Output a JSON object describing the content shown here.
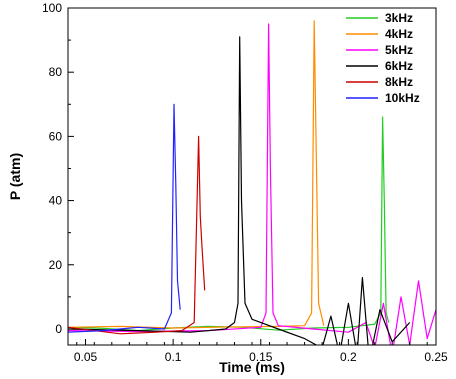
{
  "chart_data": {
    "type": "line",
    "title": "",
    "xlabel": "Time (ms)",
    "ylabel": "P (atm)",
    "xlim": [
      0.04,
      0.25
    ],
    "ylim": [
      -5,
      100
    ],
    "x_ticks": [
      0.05,
      0.1,
      0.15,
      0.2,
      0.25
    ],
    "x_tick_labels": [
      "0.05",
      "0.1",
      "0.15",
      "0.2",
      "0.25"
    ],
    "y_ticks": [
      0,
      20,
      40,
      60,
      80,
      100
    ],
    "y_tick_labels": [
      "0",
      "20",
      "40",
      "60",
      "80",
      "100"
    ],
    "grid": false,
    "legend_position": "top-right",
    "series": [
      {
        "name": "3kHz",
        "color": "#22cc22",
        "x": [
          0.04,
          0.06,
          0.08,
          0.1,
          0.12,
          0.14,
          0.16,
          0.18,
          0.2,
          0.215,
          0.2185,
          0.2195,
          0.2205,
          0.2215,
          0.223
        ],
        "y": [
          0.5,
          0.2,
          -0.5,
          0.3,
          0.8,
          0.5,
          -0.4,
          0.3,
          0.5,
          1.5,
          5,
          66,
          40,
          5,
          2
        ]
      },
      {
        "name": "4kHz",
        "color": "#ff8c00",
        "x": [
          0.04,
          0.07,
          0.1,
          0.13,
          0.16,
          0.175,
          0.179,
          0.1805,
          0.1815,
          0.183,
          0.186
        ],
        "y": [
          0.5,
          0.8,
          0.3,
          0.6,
          0.8,
          1,
          5,
          96,
          60,
          8,
          1
        ]
      },
      {
        "name": "5kHz",
        "color": "#ff00ff",
        "x": [
          0.04,
          0.08,
          0.12,
          0.15,
          0.153,
          0.1545,
          0.1555,
          0.157,
          0.16,
          0.18,
          0.2,
          0.21,
          0.215,
          0.22,
          0.225,
          0.23,
          0.235,
          0.24,
          0.245,
          0.25
        ],
        "y": [
          -0.5,
          -0.8,
          -0.5,
          0.5,
          5,
          95,
          50,
          5,
          1,
          0,
          -1,
          2,
          -6,
          8,
          -8,
          10,
          -5,
          15,
          -3,
          6
        ]
      },
      {
        "name": "6kHz",
        "color": "#000000",
        "x": [
          0.04,
          0.08,
          0.11,
          0.13,
          0.135,
          0.137,
          0.138,
          0.139,
          0.141,
          0.145,
          0.16,
          0.175,
          0.185,
          0.19,
          0.195,
          0.2,
          0.205,
          0.208,
          0.212,
          0.218,
          0.225,
          0.235
        ],
        "y": [
          0,
          -0.5,
          -1,
          0,
          2,
          8,
          91,
          40,
          8,
          3,
          0,
          -3,
          -6,
          4,
          -8,
          8,
          -8,
          16,
          -10,
          6,
          -4,
          2
        ]
      },
      {
        "name": "8kHz",
        "color": "#cc0000",
        "x": [
          0.04,
          0.07,
          0.09,
          0.105,
          0.112,
          0.1145,
          0.1155,
          0.1165,
          0.118
        ],
        "y": [
          0.5,
          -1.5,
          -1,
          -0.5,
          2,
          60,
          35,
          25,
          12
        ]
      },
      {
        "name": "10kHz",
        "color": "#2222ff",
        "x": [
          0.04,
          0.06,
          0.08,
          0.095,
          0.099,
          0.1005,
          0.1015,
          0.1025,
          0.104
        ],
        "y": [
          -1,
          -0.5,
          0.5,
          0,
          5,
          70,
          45,
          15,
          6
        ]
      }
    ]
  }
}
